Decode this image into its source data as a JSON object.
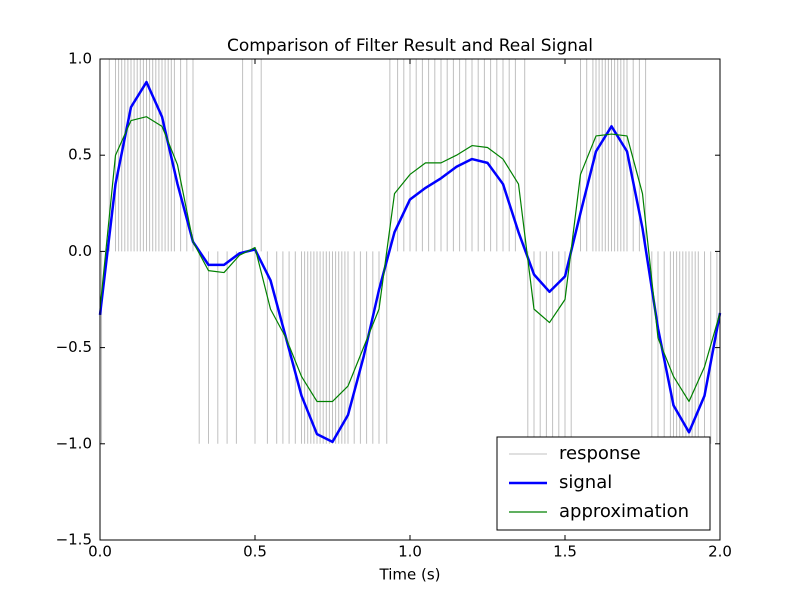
{
  "chart_data": {
    "type": "line",
    "title": "Comparison of Filter Result and Real Signal",
    "x_label": "Time (s)",
    "xlim": [
      0,
      2
    ],
    "ylim": [
      -1.5,
      1
    ],
    "xticks": [
      {
        "value": 0,
        "label": "0.0"
      },
      {
        "value": 0.5,
        "label": "0.5"
      },
      {
        "value": 1,
        "label": "1.0"
      },
      {
        "value": 1.5,
        "label": "1.5"
      },
      {
        "value": 2,
        "label": "2.0"
      }
    ],
    "yticks": [
      {
        "value": -1.5,
        "label": "−1.5"
      },
      {
        "value": -1,
        "label": "−1.0"
      },
      {
        "value": -0.5,
        "label": "−0.5"
      },
      {
        "value": 0,
        "label": "0.0"
      },
      {
        "value": 0.5,
        "label": "0.5"
      },
      {
        "value": 1,
        "label": "1.0"
      }
    ],
    "legend_position": "lower right",
    "x": [
      0,
      0.05,
      0.1,
      0.15,
      0.2,
      0.25,
      0.3,
      0.35,
      0.4,
      0.45,
      0.5,
      0.55,
      0.6,
      0.65,
      0.7,
      0.75,
      0.8,
      0.85,
      0.9,
      0.95,
      1.0,
      1.05,
      1.1,
      1.15,
      1.2,
      1.25,
      1.3,
      1.35,
      1.4,
      1.45,
      1.5,
      1.55,
      1.6,
      1.65,
      1.7,
      1.75,
      1.8,
      1.85,
      1.9,
      1.95,
      2.0
    ],
    "series": [
      {
        "name": "response",
        "color": "#c0c0c0",
        "style": "stem",
        "x": [
          0.005,
          0.03,
          0.05,
          0.06,
          0.07,
          0.08,
          0.09,
          0.1,
          0.11,
          0.12,
          0.13,
          0.14,
          0.15,
          0.16,
          0.17,
          0.18,
          0.19,
          0.2,
          0.21,
          0.22,
          0.23,
          0.24,
          0.26,
          0.28,
          0.3,
          0.32,
          0.35,
          0.38,
          0.41,
          0.44,
          0.46,
          0.49,
          0.5,
          0.52,
          0.54,
          0.57,
          0.59,
          0.61,
          0.63,
          0.65,
          0.66,
          0.67,
          0.68,
          0.69,
          0.7,
          0.71,
          0.72,
          0.73,
          0.74,
          0.75,
          0.76,
          0.77,
          0.78,
          0.79,
          0.8,
          0.82,
          0.84,
          0.86,
          0.88,
          0.9,
          0.925,
          0.935,
          0.96,
          0.98,
          1.0,
          1.02,
          1.04,
          1.06,
          1.08,
          1.1,
          1.12,
          1.14,
          1.16,
          1.18,
          1.2,
          1.22,
          1.24,
          1.26,
          1.28,
          1.3,
          1.32,
          1.34,
          1.37,
          1.38,
          1.4,
          1.42,
          1.44,
          1.46,
          1.48,
          1.5,
          1.52,
          1.55,
          1.57,
          1.59,
          1.6,
          1.61,
          1.62,
          1.63,
          1.64,
          1.65,
          1.66,
          1.67,
          1.68,
          1.69,
          1.7,
          1.72,
          1.74,
          1.76,
          1.78,
          1.8,
          1.82,
          1.84,
          1.85,
          1.86,
          1.87,
          1.88,
          1.89,
          1.9,
          1.91,
          1.92,
          1.93,
          1.95,
          1.97,
          1.99
        ],
        "values": [
          -1,
          1,
          1,
          1,
          1,
          1,
          1,
          1,
          1,
          1,
          1,
          1,
          1,
          1,
          1,
          1,
          1,
          1,
          1,
          1,
          1,
          1,
          1,
          1,
          1,
          -1,
          -1,
          -1,
          -1,
          -1,
          1,
          1,
          -1,
          1,
          -1,
          -1,
          -1,
          -1,
          -1,
          -1,
          -1,
          -1,
          -1,
          -1,
          -1,
          -1,
          -1,
          -1,
          -1,
          -1,
          -1,
          -1,
          -1,
          -1,
          -1,
          -1,
          -1,
          -1,
          -1,
          -1,
          -1,
          1,
          1,
          1,
          1,
          1,
          1,
          1,
          1,
          1,
          1,
          1,
          1,
          1,
          1,
          1,
          1,
          1,
          1,
          1,
          1,
          1,
          1,
          -1,
          -1,
          -1,
          -1,
          -1,
          -1,
          -1,
          -1,
          1,
          1,
          1,
          1,
          1,
          1,
          1,
          1,
          1,
          1,
          1,
          1,
          1,
          1,
          1,
          1,
          1,
          -1,
          -1,
          -1,
          -1,
          -1,
          -1,
          -1,
          -1,
          -1,
          -1,
          -1,
          -1,
          -1,
          -1,
          -1,
          -1
        ]
      },
      {
        "name": "signal",
        "color": "#0000ff",
        "width": 2.5,
        "values": [
          -0.33,
          0.35,
          0.75,
          0.88,
          0.7,
          0.35,
          0.05,
          -0.07,
          -0.07,
          -0.01,
          0.01,
          -0.15,
          -0.45,
          -0.75,
          -0.95,
          -0.99,
          -0.85,
          -0.55,
          -0.2,
          0.1,
          0.27,
          0.33,
          0.38,
          0.44,
          0.48,
          0.46,
          0.35,
          0.1,
          -0.12,
          -0.21,
          -0.13,
          0.2,
          0.52,
          0.65,
          0.52,
          0.12,
          -0.4,
          -0.8,
          -0.94,
          -0.75,
          -0.32
        ]
      },
      {
        "name": "approximation",
        "color": "#008000",
        "width": 1.2,
        "values": [
          -0.3,
          0.5,
          0.68,
          0.7,
          0.65,
          0.45,
          0.05,
          -0.1,
          -0.11,
          -0.02,
          0.02,
          -0.3,
          -0.45,
          -0.65,
          -0.78,
          -0.78,
          -0.7,
          -0.5,
          -0.3,
          0.3,
          0.4,
          0.46,
          0.46,
          0.5,
          0.55,
          0.54,
          0.48,
          0.35,
          -0.3,
          -0.37,
          -0.25,
          0.4,
          0.6,
          0.61,
          0.6,
          0.3,
          -0.45,
          -0.65,
          -0.78,
          -0.6,
          -0.32
        ]
      }
    ]
  }
}
